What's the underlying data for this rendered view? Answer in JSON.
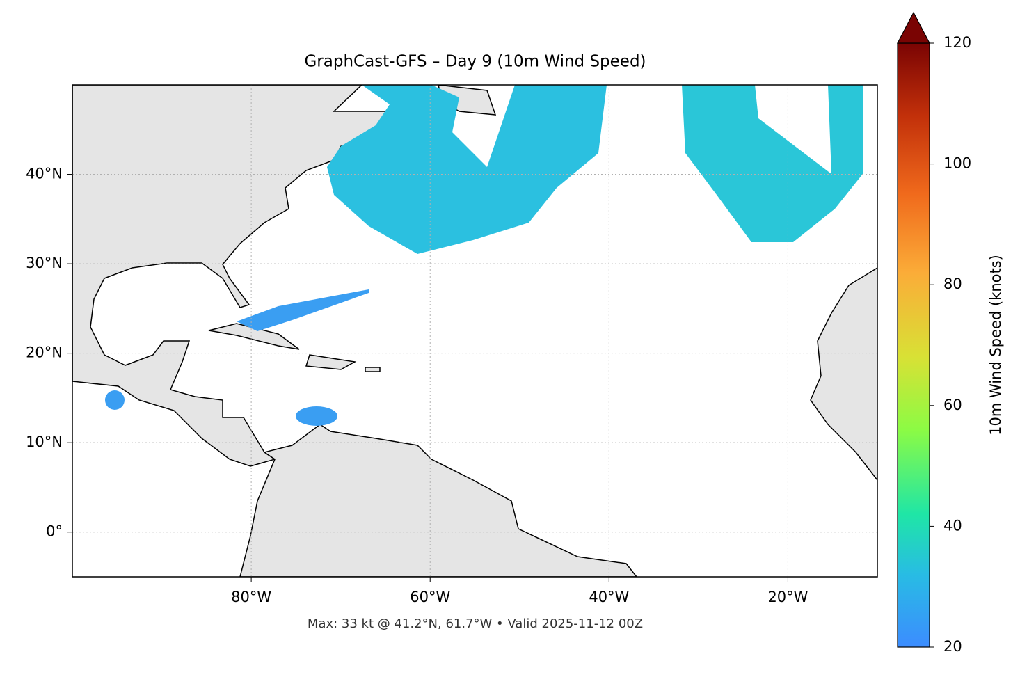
{
  "chart_data": {
    "type": "map",
    "title": "GraphCast-GFS – Day 9 (10m Wind Speed)",
    "footer": "Max: 33 kt @ 41.2°N, 61.7°W • Valid 2025-11-12 00Z",
    "xlim": [
      -100,
      -10
    ],
    "ylim": [
      -5,
      50
    ],
    "xticks": [
      {
        "value": -80,
        "label": "80°W"
      },
      {
        "value": -60,
        "label": "60°W"
      },
      {
        "value": -40,
        "label": "40°W"
      },
      {
        "value": -20,
        "label": "20°W"
      }
    ],
    "yticks": [
      {
        "value": 0,
        "label": "0°"
      },
      {
        "value": 10,
        "label": "10°N"
      },
      {
        "value": 20,
        "label": "20°N"
      },
      {
        "value": 30,
        "label": "30°N"
      },
      {
        "value": 40,
        "label": "40°N"
      }
    ],
    "grid": true,
    "colorbar": {
      "label": "10m Wind Speed (knots)",
      "lim": [
        20,
        120
      ],
      "ticks": [
        20,
        40,
        60,
        80,
        100,
        120
      ]
    }
  }
}
